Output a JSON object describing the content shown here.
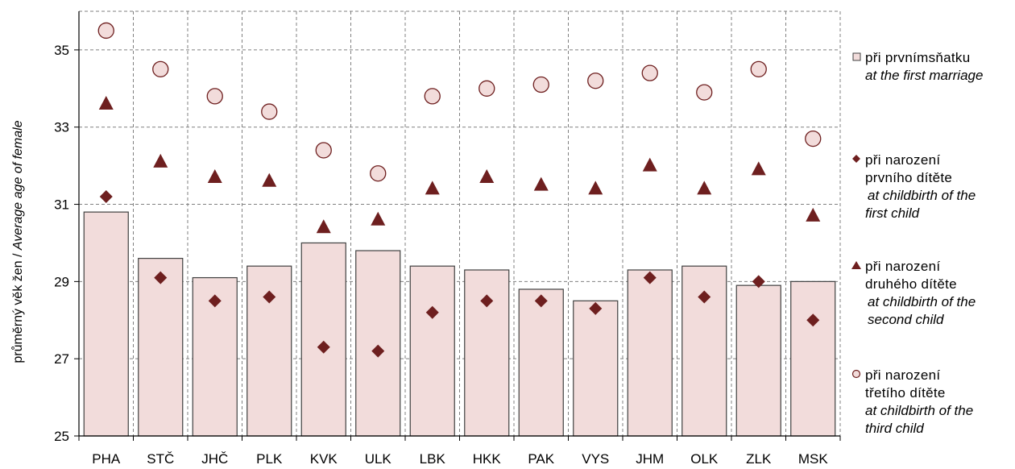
{
  "chart_data": {
    "type": "bar",
    "title": "",
    "xlabel": "",
    "ylabel_cz": "průměrný věk žen / ",
    "ylabel_en": "Average age of female",
    "ylim": [
      25,
      36
    ],
    "yticks": [
      "25",
      "27",
      "29",
      "31",
      "33",
      "35"
    ],
    "grid": true,
    "legend_position": "right",
    "categories": [
      "PHA",
      "STČ",
      "JHČ",
      "PLK",
      "KVK",
      "ULK",
      "LBK",
      "HKK",
      "PAK",
      "VYS",
      "JHM",
      "OLK",
      "ZLK",
      "MSK"
    ],
    "series": [
      {
        "key": "first_marriage",
        "name_cz": "při prvnímsňatku",
        "name_en": "at the first marriage",
        "marker": "bar",
        "values": [
          30.8,
          29.6,
          29.1,
          29.4,
          30.0,
          29.8,
          29.4,
          29.3,
          28.8,
          28.5,
          29.3,
          29.4,
          28.9,
          29.0
        ]
      },
      {
        "key": "first_child",
        "name_cz": [
          "při narození",
          "prvního dítěte"
        ],
        "name_en": [
          "at childbirth of the",
          "first child"
        ],
        "marker": "diamond",
        "values": [
          31.2,
          29.1,
          28.5,
          28.6,
          27.3,
          27.2,
          28.2,
          28.5,
          28.5,
          28.3,
          29.1,
          28.6,
          29.0,
          28.0
        ]
      },
      {
        "key": "second_child",
        "name_cz": [
          "při narození",
          "druhého dítěte"
        ],
        "name_en": [
          "at childbirth of the",
          "second child"
        ],
        "marker": "triangle",
        "values": [
          33.6,
          32.1,
          31.7,
          31.6,
          30.4,
          30.6,
          31.4,
          31.7,
          31.5,
          31.4,
          32.0,
          31.4,
          31.9,
          30.7
        ]
      },
      {
        "key": "third_child",
        "name_cz": [
          "při narození",
          "třetího dítěte"
        ],
        "name_en": [
          "at childbirth of the",
          "third child"
        ],
        "marker": "circle",
        "values": [
          35.5,
          34.5,
          33.8,
          33.4,
          32.4,
          31.8,
          33.8,
          34.0,
          34.1,
          34.2,
          34.4,
          33.9,
          34.5,
          32.7
        ]
      }
    ],
    "colors": {
      "bar_fill": "#f2dcdb",
      "bar_stroke": "#404040",
      "marker_dark": "#6e1f1f",
      "circle_fill": "#f2dcdb",
      "circle_stroke": "#6e1f1f",
      "grid": "#808080"
    }
  }
}
